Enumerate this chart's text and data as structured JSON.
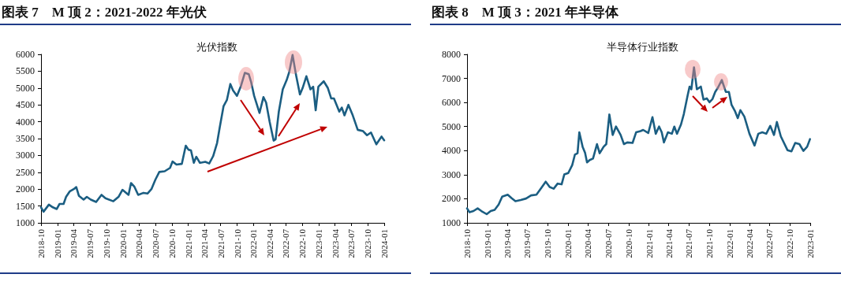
{
  "chart_data": [
    {
      "type": "line",
      "title": "图表 7　M 顶 2：2021-2022 年光伏",
      "subtitle": "光伏指数",
      "color": "#1b5e82",
      "marker": "none",
      "line_style": "solid",
      "x": [
        "2018-10-01",
        "2018-10-15",
        "2018-11-14",
        "2018-12-06",
        "2018-12-28",
        "2019-01-12",
        "2019-02-04",
        "2019-02-18",
        "2019-03-10",
        "2019-04-02",
        "2019-04-16",
        "2019-05-01",
        "2019-05-27",
        "2019-06-14",
        "2019-07-06",
        "2019-08-05",
        "2019-09-04",
        "2019-09-26",
        "2019-11-09",
        "2019-12-08",
        "2019-12-30",
        "2020-02-02",
        "2020-02-16",
        "2020-03-05",
        "2020-03-27",
        "2020-04-26",
        "2020-05-18",
        "2020-06-09",
        "2020-07-01",
        "2020-07-23",
        "2020-08-22",
        "2020-09-21",
        "2020-10-05",
        "2020-10-27",
        "2020-11-26",
        "2020-12-18",
        "2021-01-02",
        "2021-01-16",
        "2021-02-01",
        "2021-02-15",
        "2021-03-07",
        "2021-04-06",
        "2021-04-28",
        "2021-05-20",
        "2021-06-11",
        "2021-06-26",
        "2021-07-17",
        "2021-08-05",
        "2021-08-24",
        "2021-09-08",
        "2021-09-30",
        "2021-10-21",
        "2021-11-13",
        "2021-12-05",
        "2021-12-19",
        "2022-01-04",
        "2022-02-03",
        "2022-02-25",
        "2022-03-12",
        "2022-04-01",
        "2022-04-23",
        "2022-05-04",
        "2022-05-22",
        "2022-06-13",
        "2022-07-05",
        "2022-07-19",
        "2022-08-07",
        "2022-08-26",
        "2022-09-17",
        "2022-10-02",
        "2022-10-23",
        "2022-11-15",
        "2022-11-30",
        "2022-12-14",
        "2022-12-29",
        "2023-01-28",
        "2023-02-20",
        "2023-03-11",
        "2023-03-26",
        "2023-04-25",
        "2023-05-09",
        "2023-05-24",
        "2023-06-15",
        "2023-07-07",
        "2023-08-06",
        "2023-09-05",
        "2023-09-27",
        "2023-10-19",
        "2023-11-18",
        "2023-12-17",
        "2024-01-01"
      ],
      "values": [
        1460,
        1330,
        1540,
        1460,
        1410,
        1560,
        1560,
        1770,
        1930,
        2000,
        2060,
        1800,
        1690,
        1770,
        1690,
        1620,
        1830,
        1730,
        1640,
        1770,
        1980,
        1830,
        2180,
        2080,
        1830,
        1890,
        1870,
        2000,
        2280,
        2510,
        2530,
        2630,
        2820,
        2730,
        2750,
        3290,
        3170,
        3150,
        2780,
        2960,
        2780,
        2810,
        2760,
        2980,
        3370,
        3840,
        4460,
        4650,
        5120,
        4930,
        4770,
        5040,
        5450,
        5410,
        5160,
        4770,
        4260,
        4730,
        4570,
        3990,
        3440,
        3480,
        4300,
        4960,
        5240,
        5470,
        5980,
        5390,
        4810,
        5000,
        5350,
        4960,
        5040,
        4340,
        5040,
        5200,
        5000,
        4690,
        4690,
        4300,
        4420,
        4190,
        4500,
        4220,
        3760,
        3720,
        3600,
        3680,
        3330,
        3560,
        3450
      ],
      "xlim": [
        "2018-10",
        "2024-01"
      ],
      "xticks": [
        "2018-10",
        "2019-01",
        "2019-04",
        "2019-07",
        "2019-10",
        "2020-01",
        "2020-04",
        "2020-07",
        "2020-10",
        "2021-01",
        "2021-04",
        "2021-07",
        "2021-10",
        "2022-01",
        "2022-04",
        "2022-07",
        "2022-10",
        "2023-01",
        "2023-04",
        "2023-07",
        "2023-10",
        "2024-01"
      ],
      "ylim": [
        1000,
        6000
      ],
      "yticks": [
        1000,
        1500,
        2000,
        2500,
        3000,
        3500,
        4000,
        4500,
        5000,
        5500,
        6000
      ]
    },
    {
      "type": "line",
      "title": "图表 8　M 顶 3：2021 年半导体",
      "subtitle": "半导体行业指数",
      "color": "#1b5e82",
      "marker": "none",
      "line_style": "solid",
      "x": [
        "2018-10-01",
        "2018-10-12",
        "2018-10-30",
        "2018-11-18",
        "2018-12-05",
        "2018-12-29",
        "2019-01-16",
        "2019-02-03",
        "2019-02-21",
        "2019-03-09",
        "2019-04-03",
        "2019-04-20",
        "2019-05-08",
        "2019-06-01",
        "2019-06-25",
        "2019-07-18",
        "2019-08-11",
        "2019-09-05",
        "2019-09-22",
        "2019-10-10",
        "2019-10-28",
        "2019-11-15",
        "2019-12-03",
        "2019-12-15",
        "2020-01-02",
        "2020-01-20",
        "2020-02-01",
        "2020-02-13",
        "2020-02-21",
        "2020-03-07",
        "2020-03-18",
        "2020-03-27",
        "2020-04-08",
        "2020-04-23",
        "2020-05-11",
        "2020-05-23",
        "2020-06-10",
        "2020-06-22",
        "2020-07-06",
        "2020-07-21",
        "2020-08-05",
        "2020-08-26",
        "2020-09-10",
        "2020-09-25",
        "2020-10-19",
        "2020-11-04",
        "2020-11-24",
        "2020-12-06",
        "2020-12-29",
        "2021-01-17",
        "2021-02-01",
        "2021-02-16",
        "2021-02-28",
        "2021-03-10",
        "2021-03-28",
        "2021-04-15",
        "2021-04-26",
        "2021-05-08",
        "2021-05-26",
        "2021-06-08",
        "2021-06-25",
        "2021-07-04",
        "2021-07-12",
        "2021-07-24",
        "2021-08-06",
        "2021-08-24",
        "2021-09-05",
        "2021-09-20",
        "2021-10-02",
        "2021-10-16",
        "2021-10-28",
        "2021-11-09",
        "2021-11-27",
        "2021-12-15",
        "2021-12-29",
        "2022-01-10",
        "2022-01-26",
        "2022-02-07",
        "2022-02-19",
        "2022-03-09",
        "2022-04-01",
        "2022-04-24",
        "2022-05-11",
        "2022-05-29",
        "2022-06-16",
        "2022-07-04",
        "2022-07-21",
        "2022-08-03",
        "2022-08-21",
        "2022-09-20",
        "2022-10-08",
        "2022-10-25",
        "2022-11-13",
        "2022-12-01",
        "2022-12-18",
        "2022-12-31"
      ],
      "values": [
        1600,
        1440,
        1490,
        1600,
        1490,
        1360,
        1490,
        1540,
        1760,
        2090,
        2170,
        2030,
        1900,
        1950,
        2010,
        2140,
        2170,
        2490,
        2710,
        2490,
        2420,
        2630,
        2600,
        3010,
        3070,
        3400,
        3830,
        3890,
        4760,
        4160,
        3910,
        3510,
        3610,
        3670,
        4270,
        3890,
        4160,
        4270,
        5500,
        4650,
        5000,
        4650,
        4270,
        4340,
        4320,
        4760,
        4810,
        4860,
        4730,
        5390,
        4700,
        5000,
        4760,
        4340,
        4760,
        4700,
        5000,
        4700,
        5080,
        5520,
        6280,
        6660,
        6550,
        7460,
        6550,
        6660,
        6120,
        6170,
        6010,
        6150,
        6440,
        6610,
        6930,
        6440,
        6440,
        5900,
        5630,
        5350,
        5680,
        5410,
        4700,
        4210,
        4700,
        4760,
        4700,
        5030,
        4650,
        5190,
        4590,
        4020,
        3970,
        4320,
        4270,
        3990,
        4160,
        4480
      ],
      "xlim": [
        "2018-10",
        "2023-01"
      ],
      "xticks": [
        "2018-10",
        "2019-01",
        "2019-04",
        "2019-07",
        "2019-10",
        "2020-01",
        "2020-04",
        "2020-07",
        "2020-10",
        "2021-01",
        "2021-04",
        "2021-07",
        "2021-10",
        "2022-01",
        "2022-04",
        "2022-07",
        "2022-10",
        "2023-01"
      ],
      "ylim": [
        1000,
        8000
      ],
      "yticks": [
        1000,
        2000,
        3000,
        4000,
        5000,
        6000,
        7000,
        8000
      ]
    }
  ]
}
